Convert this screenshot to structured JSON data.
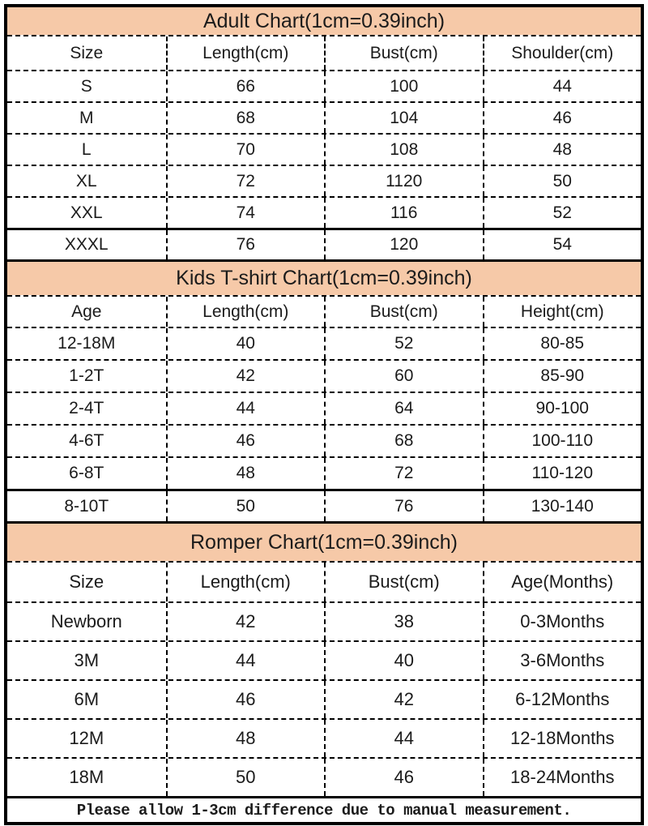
{
  "chart_data": [
    {
      "type": "table",
      "title": "Adult Chart(1cm=0.39inch)",
      "columns": [
        "Size",
        "Length(cm)",
        "Bust(cm)",
        "Shoulder(cm)"
      ],
      "rows": [
        [
          "S",
          "66",
          "100",
          "44"
        ],
        [
          "M",
          "68",
          "104",
          "46"
        ],
        [
          "L",
          "70",
          "108",
          "48"
        ],
        [
          "XL",
          "72",
          "1120",
          "50"
        ],
        [
          "XXL",
          "74",
          "116",
          "52"
        ],
        [
          "XXXL",
          "76",
          "120",
          "54"
        ]
      ]
    },
    {
      "type": "table",
      "title": "Kids T-shirt Chart(1cm=0.39inch)",
      "columns": [
        "Age",
        "Length(cm)",
        "Bust(cm)",
        "Height(cm)"
      ],
      "rows": [
        [
          "12-18M",
          "40",
          "52",
          "80-85"
        ],
        [
          "1-2T",
          "42",
          "60",
          "85-90"
        ],
        [
          "2-4T",
          "44",
          "64",
          "90-100"
        ],
        [
          "4-6T",
          "46",
          "68",
          "100-110"
        ],
        [
          "6-8T",
          "48",
          "72",
          "110-120"
        ],
        [
          "8-10T",
          "50",
          "76",
          "130-140"
        ]
      ]
    },
    {
      "type": "table",
      "title": "Romper Chart(1cm=0.39inch)",
      "columns": [
        "Size",
        "Length(cm)",
        "Bust(cm)",
        "Age(Months)"
      ],
      "rows": [
        [
          "Newborn",
          "42",
          "38",
          "0-3Months"
        ],
        [
          "3M",
          "44",
          "40",
          "3-6Months"
        ],
        [
          "6M",
          "46",
          "42",
          "6-12Months"
        ],
        [
          "12M",
          "48",
          "44",
          "12-18Months"
        ],
        [
          "18M",
          "50",
          "46",
          "18-24Months"
        ]
      ]
    }
  ],
  "footer": {
    "text": "Please allow 1-3cm difference due to manual measurement."
  },
  "colors": {
    "title_band_bg": "#f6c9a8",
    "border": "#000000",
    "text": "#1b1b1b",
    "background": "#ffffff"
  }
}
